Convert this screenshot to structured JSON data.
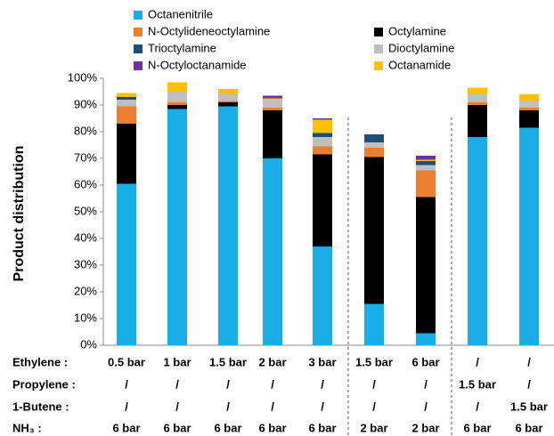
{
  "chart_data": {
    "type": "stacked_bar",
    "ylabel": "Product distribution",
    "ylim": [
      0,
      100
    ],
    "yticks": [
      {
        "value": 0,
        "label": "0%"
      },
      {
        "value": 10,
        "label": "10%"
      },
      {
        "value": 20,
        "label": "20%"
      },
      {
        "value": 30,
        "label": "30%"
      },
      {
        "value": 40,
        "label": "40%"
      },
      {
        "value": 50,
        "label": "50%"
      },
      {
        "value": 60,
        "label": "60%"
      },
      {
        "value": 70,
        "label": "70%"
      },
      {
        "value": 80,
        "label": "80%"
      },
      {
        "value": 90,
        "label": "90%"
      },
      {
        "value": 100,
        "label": "100%"
      }
    ],
    "condition_rows": [
      {
        "label": "Ethylene :",
        "values": [
          "0.5 bar",
          "1 bar",
          "1.5 bar",
          "2 bar",
          "3 bar",
          "1.5 bar",
          "6 bar",
          "/",
          "/"
        ]
      },
      {
        "label": "Propylene :",
        "values": [
          "/",
          "/",
          "/",
          "/",
          "/",
          "/",
          "/",
          "1.5 bar",
          "/"
        ]
      },
      {
        "label": "1-Butene :",
        "values": [
          "/",
          "/",
          "/",
          "/",
          "/",
          "/",
          "/",
          "/",
          "1.5 bar"
        ]
      },
      {
        "label": "NH₃ :",
        "values": [
          "6 bar",
          "6 bar",
          "6 bar",
          "6 bar",
          "6 bar",
          "2 bar",
          "2 bar",
          "6 bar",
          "6 bar"
        ]
      }
    ],
    "series": [
      {
        "name": "Octanenitrile",
        "color": "#1aaee8",
        "values": [
          60.5,
          88.5,
          89.5,
          70,
          37,
          15.5,
          4.5,
          78,
          81.5
        ]
      },
      {
        "name": "Octylamine",
        "color": "#000000",
        "values": [
          22.5,
          1.5,
          1.5,
          18,
          34.5,
          55,
          51,
          12,
          6.5
        ]
      },
      {
        "name": "N-Octylideneoctylamine",
        "color": "#ed7d31",
        "values": [
          6.5,
          1,
          0.5,
          1,
          3,
          3.5,
          10,
          1,
          1
        ]
      },
      {
        "name": "Dioctylamine",
        "color": "#bfbfbf",
        "values": [
          2.5,
          4,
          2.5,
          3,
          3.5,
          2,
          2,
          3,
          2.5
        ]
      },
      {
        "name": "Trioctylamine",
        "color": "#1f4e79",
        "values": [
          1,
          0,
          0,
          0,
          1.5,
          3,
          1.5,
          0,
          0
        ]
      },
      {
        "name": "Octanamide",
        "color": "#ffc000",
        "values": [
          1.5,
          3.5,
          2,
          0.5,
          5,
          0,
          0.5,
          2.5,
          2.5
        ]
      },
      {
        "name": "N-Octyloctanamide",
        "color": "#7030a0",
        "values": [
          0,
          0,
          0,
          1,
          0.5,
          0,
          1.5,
          0,
          0
        ]
      }
    ]
  }
}
